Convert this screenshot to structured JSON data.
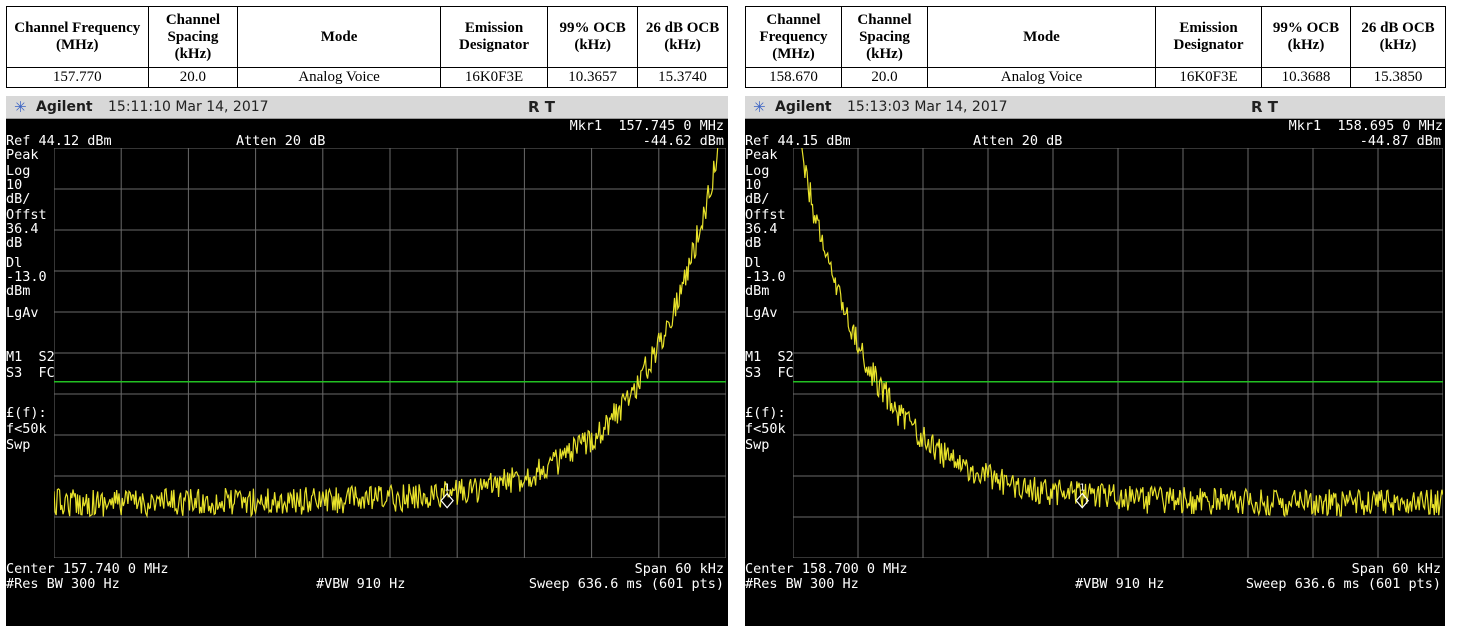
{
  "headers": {
    "freq": "Channel Frequency (MHz)",
    "spacing": "Channel Spacing (kHz)",
    "mode": "Mode",
    "designator": "Emission Designator",
    "ocb99": "99% OCB (kHz)",
    "ocb26": "26 dB OCB (kHz)"
  },
  "left": {
    "row": {
      "freq": "157.770",
      "spacing": "20.0",
      "mode": "Analog Voice",
      "designator": "16K0F3E",
      "ocb99": "10.3657",
      "ocb26": "15.3740"
    },
    "scope": {
      "brand": "Agilent",
      "timestamp": "15:11:10  Mar 14, 2017",
      "status": "R  T",
      "marker_label": "Mkr1  157.745 0 MHz",
      "marker_value": "-44.62 dBm",
      "ref": "Ref 44.12 dBm",
      "atten": "Atten 20 dB",
      "center": "Center 157.740 0 MHz",
      "span": "Span 60 kHz",
      "res_bw": "#Res BW 300 Hz",
      "vbw": "#VBW 910 Hz",
      "sweep": "Sweep 636.6 ms (601 pts)",
      "peak_side": "right"
    }
  },
  "right": {
    "row": {
      "freq": "158.670",
      "spacing": "20.0",
      "mode": "Analog Voice",
      "designator": "16K0F3E",
      "ocb99": "10.3688",
      "ocb26": "15.3850"
    },
    "scope": {
      "brand": "Agilent",
      "timestamp": "15:13:03  Mar 14, 2017",
      "status": "R  T",
      "marker_label": "Mkr1  158.695 0 MHz",
      "marker_value": "-44.87 dBm",
      "ref": "Ref 44.15 dBm",
      "atten": "Atten 20 dB",
      "center": "Center 158.700 0 MHz",
      "span": "Span 60 kHz",
      "res_bw": "#Res BW 300 Hz",
      "vbw": "#VBW 910 Hz",
      "sweep": "Sweep 636.6 ms (601 pts)",
      "peak_side": "left"
    }
  },
  "sidebar": {
    "peak": "Peak",
    "log": "Log",
    "scale": "10",
    "scale_unit": "dB/",
    "offst": "Offst",
    "offst_val": "36.4",
    "offst_unit": "dB",
    "dl": "Dl",
    "dl_val": "-13.0",
    "dl_unit": "dBm",
    "lgav": "LgAv",
    "m1s2": "M1  S2",
    "s3fc": "S3  FC",
    "lf": "£(f):",
    "flim": "f<50k",
    "swp": "Swp"
  },
  "marker_number": "1",
  "colors": {
    "trace": "#e8e22a",
    "display_line": "#22c022",
    "grid": "#6a6a6a",
    "screen_bg": "#000000",
    "titlebar_bg": "#d8d8d8"
  },
  "icons": {
    "logo": "agilent-spark-icon"
  }
}
